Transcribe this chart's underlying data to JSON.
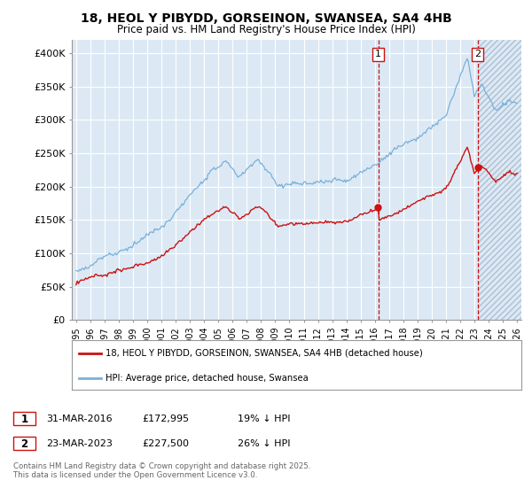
{
  "title1": "18, HEOL Y PIBYDD, GORSEINON, SWANSEA, SA4 4HB",
  "title2": "Price paid vs. HM Land Registry's House Price Index (HPI)",
  "ylim": [
    0,
    420000
  ],
  "yticks": [
    0,
    50000,
    100000,
    150000,
    200000,
    250000,
    300000,
    350000,
    400000
  ],
  "ytick_labels": [
    "£0",
    "£50K",
    "£100K",
    "£150K",
    "£200K",
    "£250K",
    "£300K",
    "£350K",
    "£400K"
  ],
  "hpi_color": "#7ab0d8",
  "price_color": "#cc1111",
  "vline_color": "#cc1111",
  "background_color": "#ffffff",
  "plot_bg_color": "#dce9f5",
  "grid_color": "#ffffff",
  "legend_label_red": "18, HEOL Y PIBYDD, GORSEINON, SWANSEA, SA4 4HB (detached house)",
  "legend_label_blue": "HPI: Average price, detached house, Swansea",
  "sale1_date": "31-MAR-2016",
  "sale1_price": 172995,
  "sale1_label": "19% ↓ HPI",
  "sale2_date": "23-MAR-2023",
  "sale2_price": 227500,
  "sale2_label": "26% ↓ HPI",
  "footnote": "Contains HM Land Registry data © Crown copyright and database right 2025.\nThis data is licensed under the Open Government Licence v3.0.",
  "sale1_x": 2016.25,
  "sale2_x": 2023.22,
  "xlim_left": 1994.7,
  "xlim_right": 2026.3
}
